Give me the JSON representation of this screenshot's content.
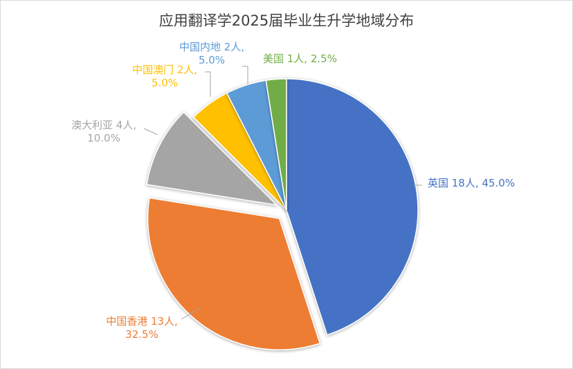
{
  "chart_data": {
    "type": "pie",
    "title": "应用翻译学2025届毕业生升学地域分布",
    "slices": [
      {
        "name": "英国",
        "count": 18,
        "percent": 45.0,
        "color": "#4472C4",
        "exploded": false,
        "label_line1": "英国 18人, 45.0%",
        "label_line2": ""
      },
      {
        "name": "中国香港",
        "count": 13,
        "percent": 32.5,
        "color": "#ED7D31",
        "exploded": true,
        "label_line1": "中国香港 13人,",
        "label_line2": "32.5%"
      },
      {
        "name": "澳大利亚",
        "count": 4,
        "percent": 10.0,
        "color": "#A5A5A5",
        "exploded": true,
        "label_line1": "澳大利亚 4人,",
        "label_line2": "10.0%"
      },
      {
        "name": "中国澳门",
        "count": 2,
        "percent": 5.0,
        "color": "#FFC000",
        "exploded": false,
        "label_line1": "中国澳门 2人,",
        "label_line2": "5.0%"
      },
      {
        "name": "中国内地",
        "count": 2,
        "percent": 5.0,
        "color": "#5B9BD5",
        "exploded": false,
        "label_line1": "中国内地 2人,",
        "label_line2": "5.0%"
      },
      {
        "name": "美国",
        "count": 1,
        "percent": 2.5,
        "color": "#70AD47",
        "exploded": false,
        "label_line1": "美国 1人, 2.5%",
        "label_line2": ""
      }
    ]
  }
}
